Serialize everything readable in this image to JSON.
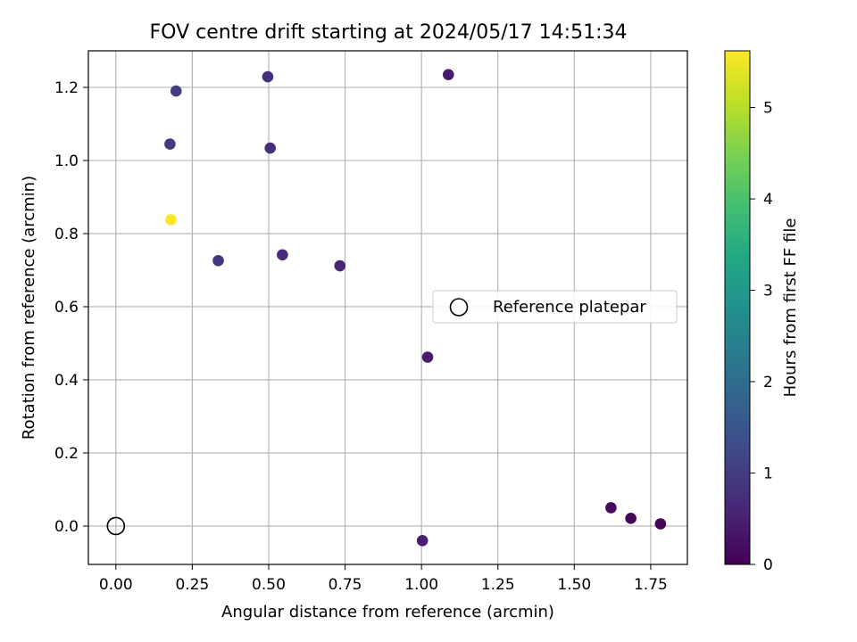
{
  "chart_data": {
    "type": "scatter",
    "title": "FOV centre drift starting at 2024/05/17 14:51:34",
    "xlabel": "Angular distance from reference (arcmin)",
    "ylabel": "Rotation from reference (arcmin)",
    "xlim": [
      -0.09,
      1.87
    ],
    "ylim": [
      -0.105,
      1.3
    ],
    "xticks": [
      0.0,
      0.25,
      0.5,
      0.75,
      1.0,
      1.25,
      1.5,
      1.75
    ],
    "xtick_labels": [
      "0.00",
      "0.25",
      "0.50",
      "0.75",
      "1.00",
      "1.25",
      "1.50",
      "1.75"
    ],
    "yticks": [
      0.0,
      0.2,
      0.4,
      0.6,
      0.8,
      1.0,
      1.2
    ],
    "ytick_labels": [
      "0.0",
      "0.2",
      "0.4",
      "0.6",
      "0.8",
      "1.0",
      "1.2"
    ],
    "grid": true,
    "legend": {
      "position": "center-right",
      "entries": [
        "Reference platepar"
      ]
    },
    "reference_point": {
      "name": "Reference platepar",
      "x": 0.0,
      "y": 0.0
    },
    "colorbar": {
      "label": "Hours from first FF file",
      "range": [
        0,
        5.62
      ],
      "ticks": [
        0,
        1,
        2,
        3,
        4,
        5
      ],
      "colormap": "viridis"
    },
    "points": [
      {
        "x": 0.18,
        "y": 0.838,
        "hours": 5.6
      },
      {
        "x": 0.197,
        "y": 1.19,
        "hours": 1.0
      },
      {
        "x": 0.177,
        "y": 1.045,
        "hours": 0.95
      },
      {
        "x": 0.335,
        "y": 0.726,
        "hours": 0.9
      },
      {
        "x": 0.497,
        "y": 1.229,
        "hours": 0.8
      },
      {
        "x": 0.505,
        "y": 1.034,
        "hours": 0.75
      },
      {
        "x": 0.545,
        "y": 0.742,
        "hours": 0.7
      },
      {
        "x": 0.733,
        "y": 0.712,
        "hours": 0.6
      },
      {
        "x": 1.088,
        "y": 1.235,
        "hours": 0.4
      },
      {
        "x": 1.02,
        "y": 0.462,
        "hours": 0.45
      },
      {
        "x": 1.003,
        "y": -0.04,
        "hours": 0.5
      },
      {
        "x": 1.62,
        "y": 0.05,
        "hours": 0.15
      },
      {
        "x": 1.685,
        "y": 0.021,
        "hours": 0.1
      },
      {
        "x": 1.782,
        "y": 0.006,
        "hours": 0.05
      }
    ]
  }
}
